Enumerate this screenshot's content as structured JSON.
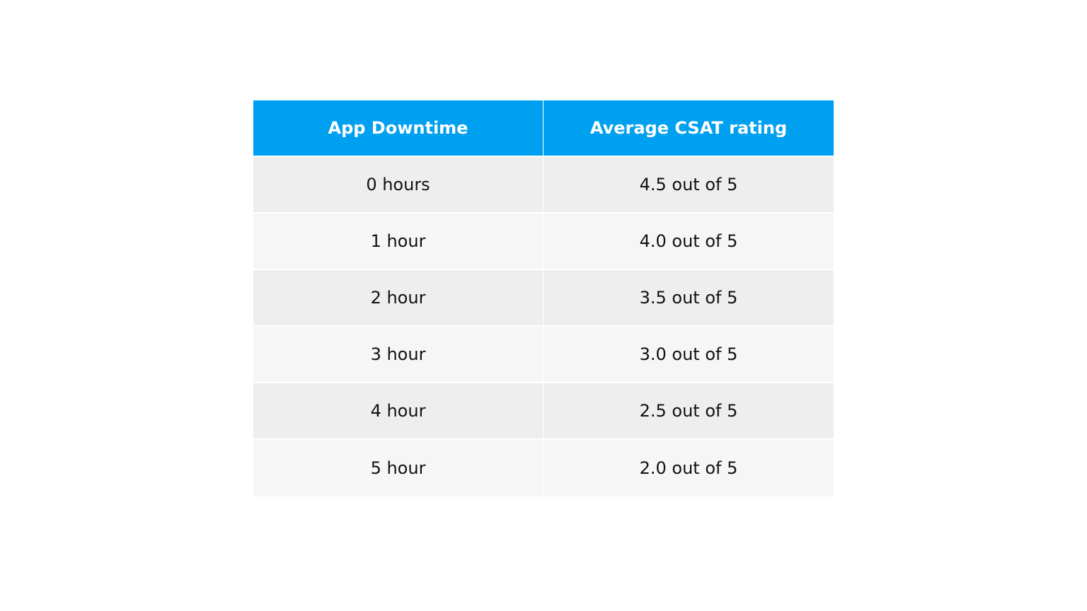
{
  "chart_data": {
    "type": "table",
    "columns": [
      "App Downtime",
      "Average CSAT rating"
    ],
    "rows": [
      [
        "0 hours",
        "4.5 out of 5"
      ],
      [
        "1 hour",
        "4.0 out of 5"
      ],
      [
        "2 hour",
        "3.5 out of 5"
      ],
      [
        "3 hour",
        "3.0 out of 5"
      ],
      [
        "4 hour",
        "2.5 out of 5"
      ],
      [
        "5 hour",
        "2.0 out of 5"
      ]
    ],
    "values": [
      {
        "downtime_hours": 0,
        "csat": 4.5
      },
      {
        "downtime_hours": 1,
        "csat": 4.0
      },
      {
        "downtime_hours": 2,
        "csat": 3.5
      },
      {
        "downtime_hours": 3,
        "csat": 3.0
      },
      {
        "downtime_hours": 4,
        "csat": 2.5
      },
      {
        "downtime_hours": 5,
        "csat": 2.0
      }
    ]
  },
  "colors": {
    "header_bg": "#00a0f0",
    "header_text": "#ffffff",
    "row_odd": "#eeeeee",
    "row_even": "#f6f6f6"
  }
}
